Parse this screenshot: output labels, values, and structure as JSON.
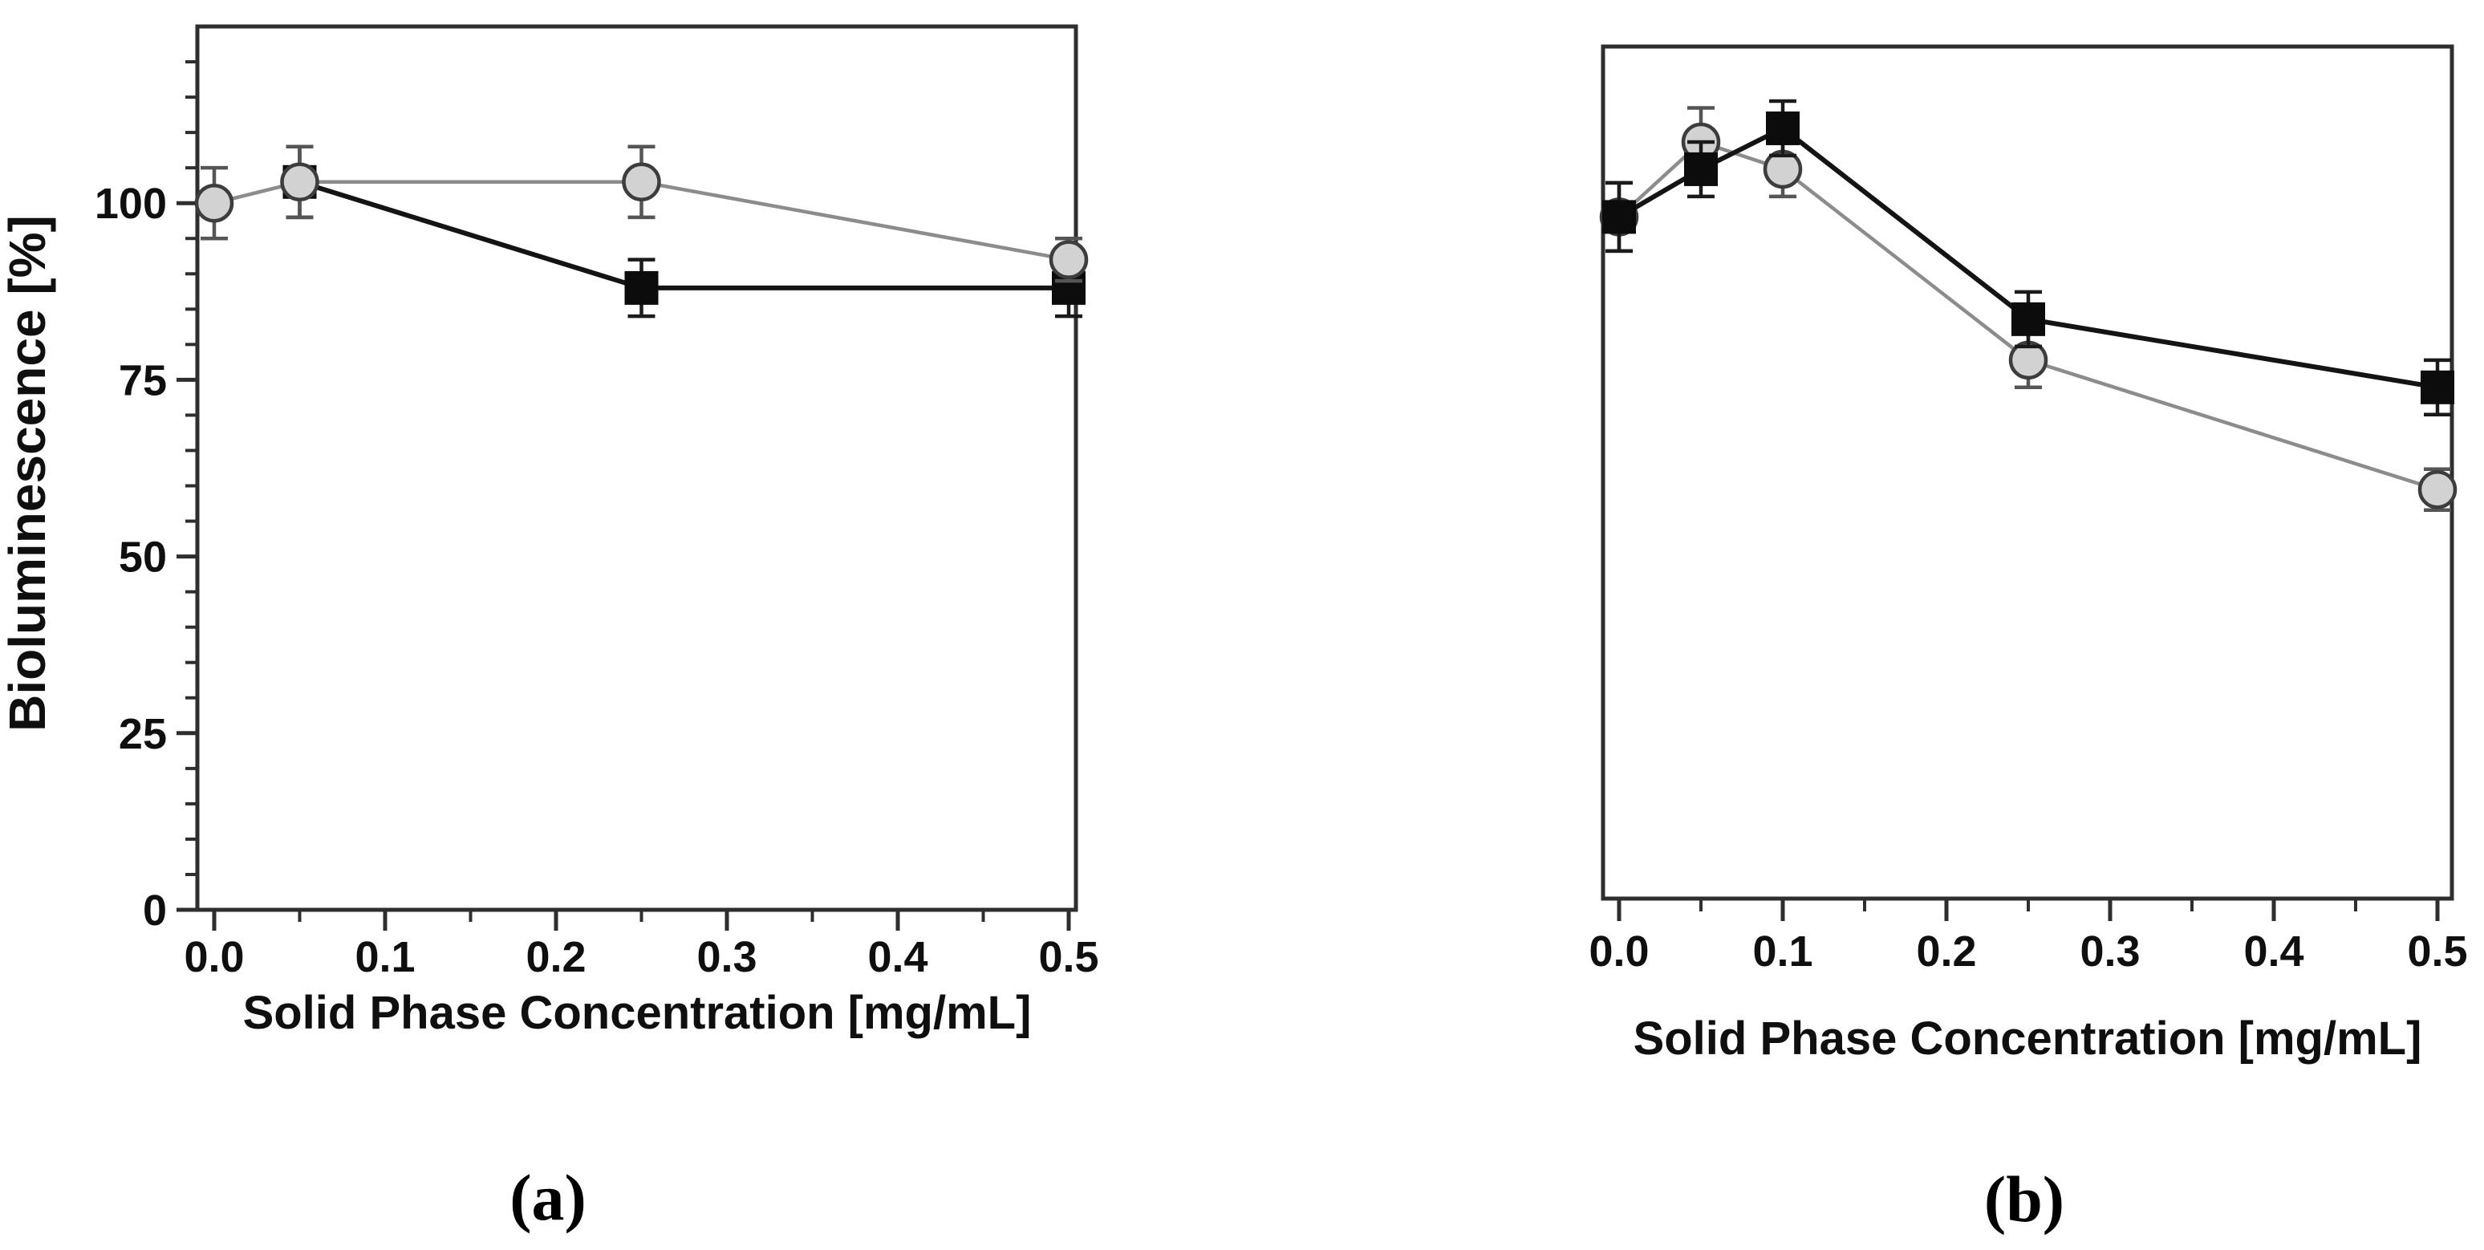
{
  "figure": {
    "description": "Two-panel line chart figure comparing bioluminescence vs solid phase concentration"
  },
  "colors": {
    "square_series_line": "#141414",
    "square_marker": "#0c0c0c",
    "square_error": "#1a1a1a",
    "circle_series_line": "#8c8c8c",
    "circle_marker_fill": "#d2d2d2",
    "circle_marker_stroke": "#3d3d3d",
    "circle_error": "#555555",
    "axis": "#2e2e2e",
    "text": "#0f0f0f",
    "background": "#ffffff"
  },
  "chart_data": [
    {
      "id": "a",
      "type": "line",
      "caption": "(a)",
      "title": "",
      "xlabel": "Solid Phase Concentration [mg/mL]",
      "ylabel": "Bioluminescence [%]",
      "xlim": [
        0,
        0.5
      ],
      "ylim": [
        0,
        125
      ],
      "xtick_values": [
        0.0,
        0.1,
        0.2,
        0.3,
        0.4,
        0.5
      ],
      "xtick_labels": [
        "0.0",
        "0.1",
        "0.2",
        "0.3",
        "0.4",
        "0.5"
      ],
      "x_minor_values": [
        0.05,
        0.15,
        0.25,
        0.35,
        0.45
      ],
      "ytick_values": [
        0,
        25,
        50,
        75,
        100
      ],
      "ytick_labels": [
        "0",
        "25",
        "50",
        "75",
        "100"
      ],
      "y_minor_step": 5,
      "show_y_axis_ticks": true,
      "grid": false,
      "legend": "none",
      "series": [
        {
          "name": "black-squares",
          "marker": "square",
          "x": [
            0.05,
            0.25,
            0.5
          ],
          "y": [
            103,
            88,
            88
          ],
          "yerr": [
            5,
            4,
            4
          ]
        },
        {
          "name": "gray-circles",
          "marker": "circle",
          "x": [
            0.0,
            0.05,
            0.25,
            0.5
          ],
          "y": [
            100,
            103,
            103,
            92
          ],
          "yerr": [
            5,
            5,
            5,
            3
          ]
        }
      ]
    },
    {
      "id": "b",
      "type": "line",
      "caption": "(b)",
      "title": "",
      "xlabel": "Solid Phase Concentration [mg/mL]",
      "ylabel": "",
      "xlim": [
        0,
        0.5
      ],
      "ylim": [
        0,
        125
      ],
      "xtick_values": [
        0.0,
        0.1,
        0.2,
        0.3,
        0.4,
        0.5
      ],
      "xtick_labels": [
        "0.0",
        "0.1",
        "0.2",
        "0.3",
        "0.4",
        "0.5"
      ],
      "x_minor_values": [
        0.05,
        0.15,
        0.25,
        0.35,
        0.45
      ],
      "ytick_values": [],
      "ytick_labels": [],
      "y_minor_step": 0,
      "show_y_axis_ticks": false,
      "grid": false,
      "legend": "none",
      "series": [
        {
          "name": "gray-circles",
          "marker": "circle",
          "x": [
            0.0,
            0.05,
            0.1,
            0.25,
            0.5
          ],
          "y": [
            100,
            111,
            107,
            79,
            60
          ],
          "yerr": [
            5,
            5,
            4,
            4,
            3
          ]
        },
        {
          "name": "black-squares",
          "marker": "square",
          "x": [
            0.0,
            0.05,
            0.1,
            0.25,
            0.5
          ],
          "y": [
            100,
            107,
            113,
            85,
            75
          ],
          "yerr": [
            5,
            4,
            4,
            4,
            4
          ]
        }
      ]
    }
  ]
}
